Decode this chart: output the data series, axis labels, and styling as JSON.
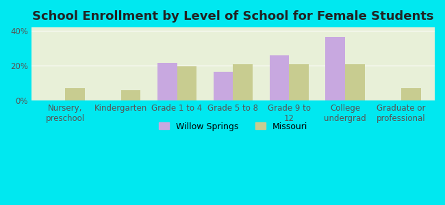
{
  "title": "School Enrollment by Level of School for Female Students",
  "categories": [
    "Nursery,\npreschool",
    "Kindergarten",
    "Grade 1 to 4",
    "Grade 5 to 8",
    "Grade 9 to\n12",
    "College\nundergrad",
    "Graduate or\nprofessional"
  ],
  "willow_springs": [
    0,
    0,
    21.5,
    16.5,
    26.0,
    36.5,
    0
  ],
  "missouri": [
    7.0,
    6.0,
    19.5,
    21.0,
    21.0,
    21.0,
    7.0
  ],
  "willow_color": "#c8a8e0",
  "missouri_color": "#c8cc90",
  "background_outer": "#00e8f0",
  "background_inner": "#e8f0d8",
  "yticks": [
    0,
    20,
    40
  ],
  "ylim": [
    0,
    42
  ],
  "ylabel_pct": [
    "0%",
    "20%",
    "40%"
  ],
  "bar_width": 0.35,
  "legend_labels": [
    "Willow Springs",
    "Missouri"
  ],
  "title_fontsize": 13,
  "tick_fontsize": 8.5,
  "legend_fontsize": 9
}
